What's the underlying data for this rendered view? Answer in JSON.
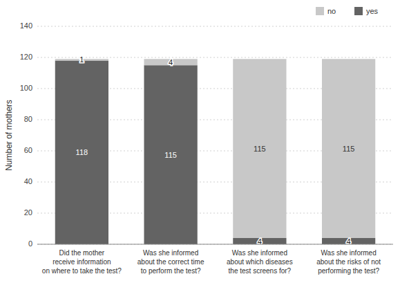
{
  "chart_data": {
    "type": "bar",
    "stacked": true,
    "categories": [
      "Did the mother\nreceive information\non where to take the test?",
      "Was she informed\nabout the correct time\nto perform the test?",
      "Was she informed\nabout which diseases\nthe test screens for?",
      "Was she informed\nabout the risks of not\nperforming the test?"
    ],
    "series": [
      {
        "name": "yes",
        "color": "#636363",
        "values": [
          118,
          115,
          4,
          4
        ]
      },
      {
        "name": "no",
        "color": "#c8c8c8",
        "values": [
          1,
          4,
          115,
          115
        ]
      }
    ],
    "ylabel": "Number of mothers",
    "ylim": [
      0,
      140
    ],
    "yticks": [
      0,
      20,
      40,
      60,
      80,
      100,
      120,
      140
    ],
    "grid": true,
    "legend": "upper right",
    "data_labels": true
  }
}
